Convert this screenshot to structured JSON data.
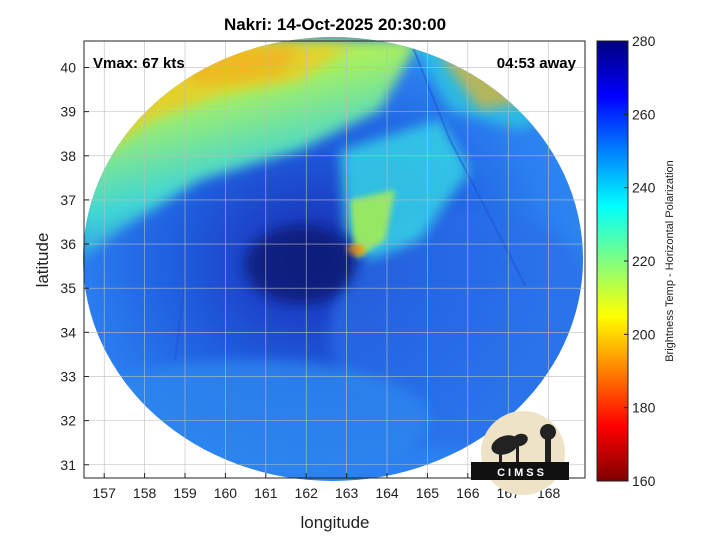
{
  "title": "Nakri: 14-Oct-2025 20:30:00",
  "vmax_label": "Vmax: 67 kts",
  "time_label": "04:53 away",
  "xlabel": "longitude",
  "ylabel": "latitude",
  "colorbar_label": "Brightness Temp - Horizontal Polarization",
  "logo_text": "CIMSS",
  "chart_data": {
    "type": "heatmap",
    "xlim": [
      156.5,
      168.9
    ],
    "ylim": [
      30.7,
      40.6
    ],
    "x_ticks": [
      "157",
      "158",
      "159",
      "160",
      "161",
      "162",
      "163",
      "164",
      "165",
      "166",
      "167",
      "168"
    ],
    "y_ticks": [
      "31",
      "32",
      "33",
      "34",
      "35",
      "36",
      "37",
      "38",
      "39",
      "40"
    ],
    "colorbar_ticks": [
      "280",
      "260",
      "240",
      "220",
      "200",
      "180",
      "160"
    ],
    "colorbar_range": [
      160,
      280
    ],
    "colormap": [
      "#7f0000",
      "#ff0000",
      "#ff8000",
      "#ffff00",
      "#80ff80",
      "#00ffff",
      "#0080ff",
      "#0000ff",
      "#00007f"
    ],
    "swath_center": [
      162.4,
      35.4
    ],
    "grid": true,
    "storm_center": [
      162.2,
      35.5
    ]
  }
}
